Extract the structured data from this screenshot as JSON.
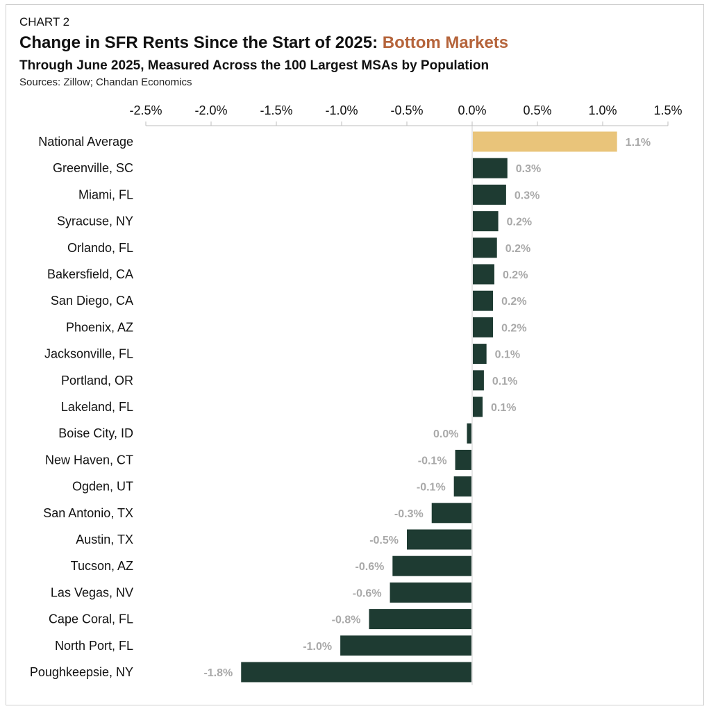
{
  "header": {
    "kicker": "CHART 2",
    "title_main": "Change in SFR Rents Since the Start of 2025: ",
    "title_accent": "Bottom Markets",
    "subtitle": "Through June 2025, Measured Across the 100 Largest MSAs by Population",
    "source": "Sources: Zillow; Chandan Economics"
  },
  "colors": {
    "highlight": "#e9c47a",
    "bar": "#1e3b32",
    "accent": "#b5643b",
    "data_label": "#a9a9a9"
  },
  "chart_data": {
    "type": "bar",
    "orientation": "horizontal",
    "xlim": [
      -2.5,
      1.5
    ],
    "ticks": [
      -2.5,
      -2.0,
      -1.5,
      -1.0,
      -0.5,
      0.0,
      0.5,
      1.0,
      1.5
    ],
    "tick_labels": [
      "-2.5%",
      "-2.0%",
      "-1.5%",
      "-1.0%",
      "-0.5%",
      "0.0%",
      "0.5%",
      "1.0%",
      "1.5%"
    ],
    "axis_position": "top",
    "grid": false,
    "categories": [
      "National Average",
      "Greenville, SC",
      "Miami, FL",
      "Syracuse, NY",
      "Orlando, FL",
      "Bakersfield, CA",
      "San Diego, CA",
      "Phoenix, AZ",
      "Jacksonville, FL",
      "Portland, OR",
      "Lakeland, FL",
      "Boise City, ID",
      "New Haven, CT",
      "Ogden, UT",
      "San Antonio, TX",
      "Austin, TX",
      "Tucson, AZ",
      "Las Vegas, NV",
      "Cape Coral, FL",
      "North Port, FL",
      "Poughkeepsie, NY"
    ],
    "values": [
      1.11,
      0.27,
      0.26,
      0.2,
      0.19,
      0.17,
      0.16,
      0.16,
      0.11,
      0.09,
      0.08,
      -0.04,
      -0.13,
      -0.14,
      -0.31,
      -0.5,
      -0.61,
      -0.63,
      -0.79,
      -1.01,
      -1.77
    ],
    "labels": [
      "1.1%",
      "0.3%",
      "0.3%",
      "0.2%",
      "0.2%",
      "0.2%",
      "0.2%",
      "0.2%",
      "0.1%",
      "0.1%",
      "0.1%",
      "0.0%",
      "-0.1%",
      "-0.1%",
      "-0.3%",
      "-0.5%",
      "-0.6%",
      "-0.6%",
      "-0.8%",
      "-1.0%",
      "-1.8%"
    ],
    "highlight_index": 0
  }
}
